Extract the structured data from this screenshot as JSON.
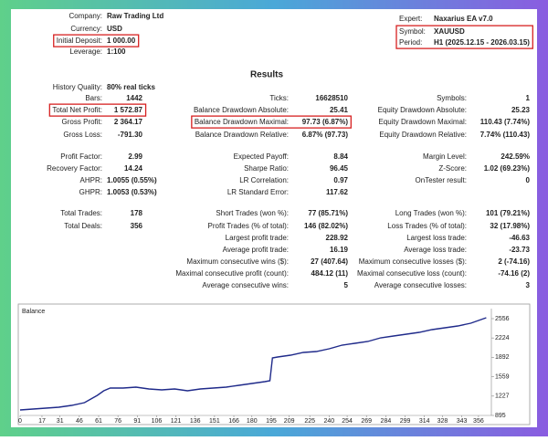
{
  "header": {
    "left": [
      {
        "label": "Company:",
        "value": "Raw Trading Ltd"
      },
      {
        "label": "Currency:",
        "value": "USD"
      },
      {
        "label": "Initial Deposit:",
        "value": "1 000.00",
        "highlight": true
      },
      {
        "label": "Leverage:",
        "value": "1:100"
      }
    ],
    "right": [
      {
        "label": "Expert:",
        "value": "Naxarius EA v7.0"
      },
      {
        "label": "Symbol:",
        "value": "XAUUSD",
        "highlight": true
      },
      {
        "label": "Period:",
        "value": "H1 (2025.12.15 - 2026.03.15)",
        "highlight": true
      }
    ]
  },
  "results": {
    "title": "Results",
    "rows": [
      [
        {
          "label": "History Quality:",
          "value": "80% real ticks"
        },
        null,
        null
      ],
      [
        {
          "label": "Bars:",
          "value": "1442"
        },
        {
          "label": "Ticks:",
          "value": "16628510"
        },
        {
          "label": "Symbols:",
          "value": "1"
        }
      ],
      [
        {
          "label": "Total Net Profit:",
          "value": "1 572.87",
          "highlight": true
        },
        {
          "label": "Balance Drawdown Absolute:",
          "value": "25.41"
        },
        {
          "label": "Equity Drawdown Absolute:",
          "value": "25.23"
        }
      ],
      [
        {
          "label": "Gross Profit:",
          "value": "2 364.17"
        },
        {
          "label": "Balance Drawdown Maximal:",
          "value": "97.73 (6.87%)",
          "highlight": true
        },
        {
          "label": "Equity Drawdown Maximal:",
          "value": "110.43 (7.74%)"
        }
      ],
      [
        {
          "label": "Gross Loss:",
          "value": "-791.30"
        },
        {
          "label": "Balance Drawdown Relative:",
          "value": "6.87% (97.73)"
        },
        {
          "label": "Equity Drawdown Relative:",
          "value": "7.74% (110.43)"
        }
      ],
      [
        {
          "label": "Profit Factor:",
          "value": "2.99"
        },
        {
          "label": "Expected Payoff:",
          "value": "8.84"
        },
        {
          "label": "Margin Level:",
          "value": "242.59%"
        }
      ],
      [
        {
          "label": "Recovery Factor:",
          "value": "14.24"
        },
        {
          "label": "Sharpe Ratio:",
          "value": "96.45"
        },
        {
          "label": "Z-Score:",
          "value": "1.02 (69.23%)"
        }
      ],
      [
        {
          "label": "AHPR:",
          "value": "1.0055 (0.55%)"
        },
        {
          "label": "LR Correlation:",
          "value": "0.97"
        },
        {
          "label": "OnTester result:",
          "value": "0"
        }
      ],
      [
        {
          "label": "GHPR:",
          "value": "1.0053 (0.53%)"
        },
        {
          "label": "LR Standard Error:",
          "value": "117.62"
        },
        null
      ],
      [
        {
          "label": "Total Trades:",
          "value": "178"
        },
        {
          "label": "Short Trades (won %):",
          "value": "77 (85.71%)"
        },
        {
          "label": "Long Trades (won %):",
          "value": "101 (79.21%)"
        }
      ],
      [
        {
          "label": "Total Deals:",
          "value": "356"
        },
        {
          "label": "Profit Trades (% of total):",
          "value": "146 (82.02%)"
        },
        {
          "label": "Loss Trades (% of total):",
          "value": "32 (17.98%)"
        }
      ],
      [
        null,
        {
          "label": "Largest profit trade:",
          "value": "228.92"
        },
        {
          "label": "Largest loss trade:",
          "value": "-46.63"
        }
      ],
      [
        null,
        {
          "label": "Average profit trade:",
          "value": "16.19"
        },
        {
          "label": "Average loss trade:",
          "value": "-23.73"
        }
      ],
      [
        null,
        {
          "label": "Maximum consecutive wins ($):",
          "value": "27 (407.64)"
        },
        {
          "label": "Maximum consecutive losses ($):",
          "value": "2 (-74.16)"
        }
      ],
      [
        null,
        {
          "label": "Maximal consecutive profit (count):",
          "value": "484.12 (11)"
        },
        {
          "label": "Maximal consecutive loss (count):",
          "value": "-74.16 (2)"
        }
      ],
      [
        null,
        {
          "label": "Average consecutive wins:",
          "value": "5"
        },
        {
          "label": "Average consecutive losses:",
          "value": "3"
        }
      ]
    ]
  },
  "chart_data": {
    "type": "line",
    "title": "Balance",
    "x": [
      0,
      10,
      20,
      30,
      40,
      50,
      60,
      65,
      70,
      80,
      90,
      100,
      110,
      120,
      130,
      140,
      150,
      160,
      170,
      180,
      190,
      194,
      196,
      200,
      210,
      220,
      230,
      240,
      250,
      260,
      270,
      280,
      290,
      300,
      310,
      320,
      330,
      340,
      350,
      356,
      362
    ],
    "series": [
      {
        "color": "#1f2a8a",
        "values": [
          989,
          1005,
          1020,
          1036,
          1067,
          1114,
          1240,
          1318,
          1365,
          1365,
          1381,
          1349,
          1334,
          1349,
          1318,
          1349,
          1365,
          1381,
          1412,
          1443,
          1475,
          1490,
          1882,
          1898,
          1929,
          1976,
          1992,
          2039,
          2102,
          2133,
          2164,
          2227,
          2258,
          2290,
          2321,
          2368,
          2399,
          2431,
          2478,
          2525,
          2572
        ]
      }
    ],
    "xlim": [
      0,
      366
    ],
    "ylim": [
      895,
      2728
    ],
    "xticks": [
      0,
      17,
      31,
      46,
      61,
      76,
      91,
      106,
      121,
      136,
      151,
      166,
      180,
      195,
      209,
      225,
      240,
      254,
      269,
      284,
      299,
      314,
      328,
      343,
      356
    ],
    "yticks": [
      895,
      1227,
      1559,
      1892,
      2224,
      2556
    ]
  }
}
